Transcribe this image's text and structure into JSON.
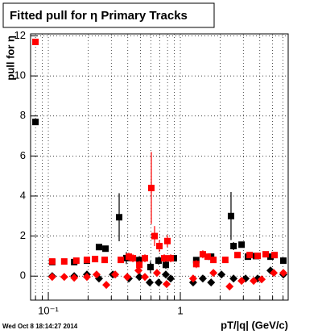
{
  "chart_data": {
    "type": "scatter",
    "title": "Fitted pull for  η  Primary Tracks",
    "y_label": "pull for η",
    "x_label": "pT/|q| (GeV/c)",
    "footer": "Wed Oct  8 18:14:27 2014",
    "log_x": true,
    "grid": true,
    "xlim": [
      0.0734,
      6.56
    ],
    "ylim": [
      -1.2,
      12.1
    ],
    "xticks": [
      {
        "value": 0.1,
        "label": "10⁻¹"
      },
      1
    ],
    "xminorticks": [
      0.08,
      0.09,
      0.2,
      0.3,
      0.4,
      0.5,
      0.6,
      0.7,
      0.8,
      0.9,
      2,
      3,
      4,
      5,
      6
    ],
    "yticks": [
      0,
      2,
      4,
      6,
      8,
      10,
      12
    ],
    "series": [
      {
        "marker": "square",
        "color": "#000000",
        "x": [
          0.0799,
          0.107,
          0.157,
          0.196,
          0.242,
          0.271,
          0.344,
          0.39,
          0.489,
          0.594,
          0.684,
          0.776,
          0.893,
          1.32,
          1.71,
          2.42,
          2.53,
          2.91,
          3.25,
          3.74,
          4.82,
          6.03
        ],
        "values": [
          7.7,
          0.7,
          0.7,
          0.77,
          1.45,
          1.37,
          2.94,
          0.9,
          0.8,
          0.45,
          0.77,
          0.56,
          0.89,
          0.8,
          0.97,
          3.0,
          1.5,
          1.57,
          0.97,
          1.0,
          0.97,
          0.77
        ],
        "errors": [
          0.15,
          0.05,
          0.05,
          0.05,
          0.1,
          0.1,
          1.2,
          0.3,
          0.2,
          0.3,
          0.2,
          0.2,
          0.1,
          0.1,
          0.15,
          1.2,
          0.2,
          0.1,
          0.1,
          0.1,
          0.1,
          0.1
        ]
      },
      {
        "marker": "diamond",
        "color": "#000000",
        "x": [
          0.107,
          0.157,
          0.196,
          0.242,
          0.308,
          0.407,
          0.489,
          0.586,
          0.684,
          0.776,
          0.845,
          1.25,
          1.48,
          1.71,
          2.05,
          2.53,
          3.12,
          3.85,
          4.82,
          6.03
        ],
        "values": [
          0,
          0,
          0.08,
          -0.12,
          0.08,
          -0.12,
          -0.04,
          -0.32,
          -0.32,
          0.08,
          -0.12,
          -0.32,
          -0.12,
          -0.32,
          0.08,
          -0.12,
          -0.12,
          -0.12,
          0.28,
          0.08
        ]
      },
      {
        "marker": "square",
        "color": "#ff0000",
        "x": [
          0.0799,
          0.107,
          0.132,
          0.163,
          0.196,
          0.226,
          0.267,
          0.354,
          0.407,
          0.437,
          0.489,
          0.539,
          0.603,
          0.638,
          0.694,
          0.755,
          0.798,
          0.845,
          1.32,
          1.48,
          1.61,
          1.78,
          2.19,
          2.71,
          3.35,
          3.85,
          4.43,
          5.17
        ],
        "values": [
          11.7,
          0.73,
          0.73,
          0.77,
          0.81,
          0.85,
          0.81,
          0.81,
          0.97,
          0.89,
          0.56,
          0.89,
          4.4,
          2.0,
          1.5,
          0.89,
          1.75,
          0.89,
          0.6,
          1.09,
          0.97,
          0.81,
          0.81,
          1.05,
          1.05,
          1.01,
          1.09,
          1.05
        ],
        "errors": [
          0.1,
          0.05,
          0.05,
          0.05,
          0.05,
          0.05,
          0.1,
          0.1,
          0.2,
          0.2,
          0.2,
          0.2,
          1.8,
          0.5,
          0.3,
          0.2,
          0.3,
          0.2,
          0.2,
          0.2,
          0.15,
          0.15,
          0.1,
          0.1,
          0.1,
          0.1,
          0.1,
          0.1
        ]
      },
      {
        "marker": "diamond",
        "color": "#ff0000",
        "x": [
          0.107,
          0.132,
          0.157,
          0.196,
          0.232,
          0.275,
          0.321,
          0.396,
          0.482,
          0.539,
          0.665,
          0.787,
          1.25,
          1.78,
          2.36,
          2.91,
          3.59,
          4.13,
          5.1,
          6.03
        ],
        "values": [
          -0.04,
          -0.04,
          -0.08,
          -0.04,
          0.08,
          -0.44,
          0.08,
          -0.04,
          0.28,
          -0.04,
          0.16,
          -0.4,
          -0.12,
          0.16,
          -0.52,
          -0.24,
          -0.24,
          -0.16,
          0.16,
          0.16
        ]
      }
    ]
  }
}
